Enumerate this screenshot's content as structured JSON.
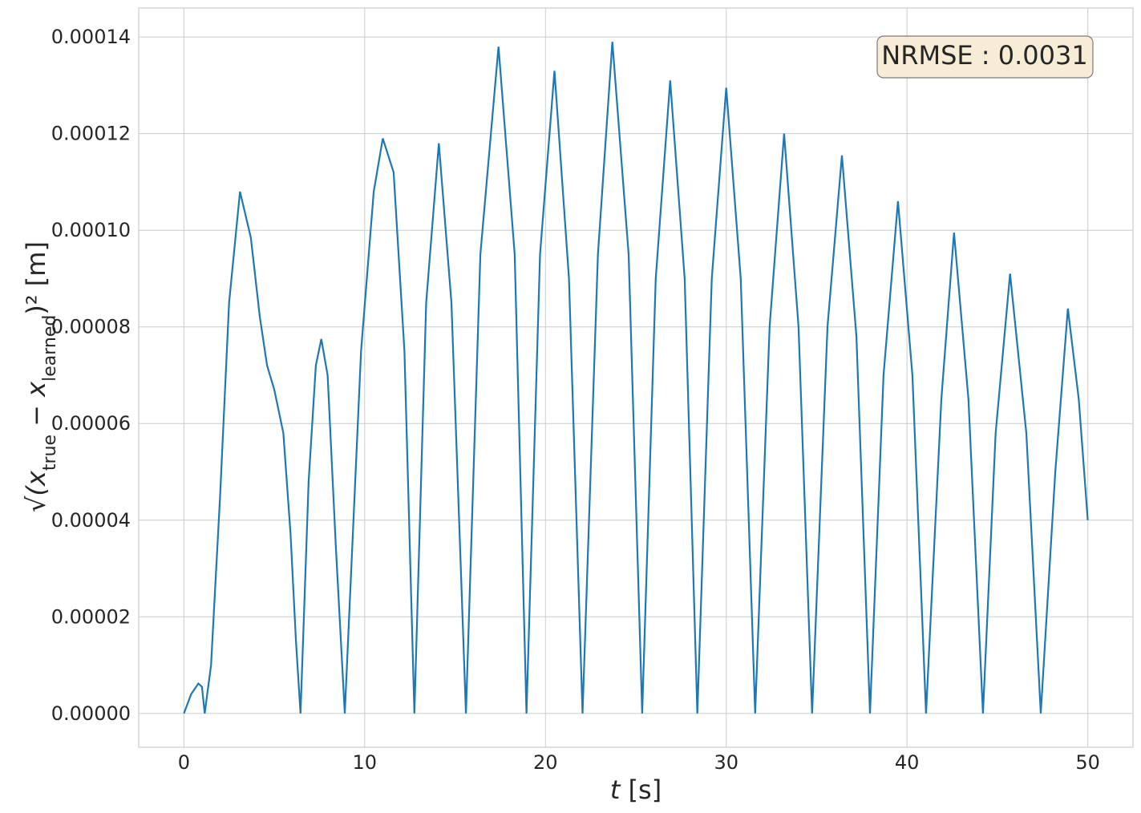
{
  "chart_data": {
    "type": "line",
    "xlabel": "t [s]",
    "ylabel": "√(x_true − x_learned)² [m]",
    "xlim": [
      -2.5,
      52.5
    ],
    "ylim": [
      -7e-06,
      0.000146
    ],
    "xticks": [
      0,
      10,
      20,
      30,
      40,
      50
    ],
    "yticks": [
      0,
      2e-05,
      4e-05,
      6e-05,
      8e-05,
      0.0001,
      0.00012,
      0.00014
    ],
    "xtick_labels": [
      "0",
      "10",
      "20",
      "30",
      "40",
      "50"
    ],
    "ytick_labels": [
      "0.00000",
      "0.00002",
      "0.00004",
      "0.00006",
      "0.00008",
      "0.00010",
      "0.00012",
      "0.00014"
    ],
    "grid": true,
    "annotation": "NRMSE : 0.0031",
    "annotation_position": "top-right",
    "line_color": "#1f77b4",
    "annotation_face": "#f7ecd6",
    "series": [
      {
        "x": [
          0,
          0.4,
          0.8,
          1.0,
          1.15,
          1.5,
          2.0,
          2.5,
          3.1,
          3.7,
          4.2,
          4.6,
          5.0,
          5.5,
          5.9,
          6.2,
          6.45,
          6.9,
          7.3,
          7.6,
          7.95,
          8.4,
          8.9,
          9.8,
          10.5,
          11.0,
          11.6,
          12.2,
          12.75,
          13.4,
          14.1,
          14.8,
          15.6,
          16.4,
          17.4,
          18.3,
          18.95,
          19.7,
          20.5,
          21.3,
          22.05,
          22.9,
          23.7,
          24.6,
          25.35,
          26.1,
          26.9,
          27.7,
          28.4,
          29.2,
          30.0,
          30.8,
          31.6,
          32.4,
          33.2,
          34.0,
          34.75,
          35.6,
          36.4,
          37.2,
          37.95,
          38.7,
          39.5,
          40.3,
          41.05,
          41.9,
          42.6,
          43.4,
          44.2,
          44.9,
          45.7,
          46.6,
          47.4,
          48.2,
          48.9,
          49.5,
          50.0
        ],
        "y": [
          0,
          4e-06,
          6.2e-06,
          5.5e-06,
          0,
          1e-05,
          4.5e-05,
          8.5e-05,
          0.000108,
          9.85e-05,
          8.2e-05,
          7.2e-05,
          6.7e-05,
          5.8e-05,
          3.7e-05,
          1.5e-05,
          0,
          4.8e-05,
          7.2e-05,
          7.75e-05,
          7e-05,
          3.5e-05,
          0,
          7.5e-05,
          0.000108,
          0.000119,
          0.000112,
          7.5e-05,
          0,
          8.5e-05,
          0.000118,
          8.5e-05,
          0,
          9.5e-05,
          0.000138,
          9.5e-05,
          0,
          9.5e-05,
          0.000133,
          9e-05,
          0,
          9.5e-05,
          0.000139,
          9.5e-05,
          0,
          9e-05,
          0.000131,
          9e-05,
          0,
          9e-05,
          0.0001295,
          9e-05,
          0,
          8e-05,
          0.00012,
          8e-05,
          0,
          8e-05,
          0.0001155,
          7.8e-05,
          0,
          7e-05,
          0.000106,
          7e-05,
          0,
          6.5e-05,
          9.95e-05,
          6.5e-05,
          0,
          5.8e-05,
          9.1e-05,
          5.8e-05,
          0,
          5e-05,
          8.38e-05,
          6.5e-05,
          4e-05
        ]
      }
    ]
  }
}
